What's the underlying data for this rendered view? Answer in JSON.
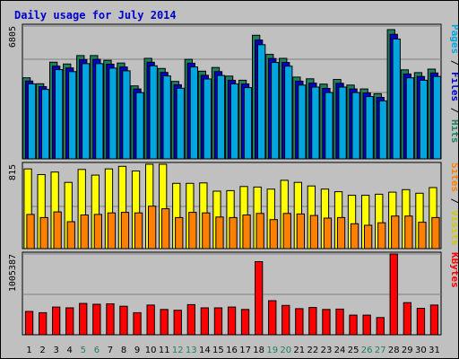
{
  "chart_data": {
    "title": "Daily usage for July 2014",
    "days": [
      "1",
      "2",
      "3",
      "4",
      "5",
      "6",
      "7",
      "8",
      "9",
      "10",
      "11",
      "12",
      "13",
      "14",
      "15",
      "16",
      "17",
      "18",
      "19",
      "20",
      "21",
      "22",
      "23",
      "24",
      "25",
      "26",
      "27",
      "28",
      "29",
      "30",
      "31"
    ],
    "weekend_days": [
      "5",
      "6",
      "12",
      "13",
      "19",
      "20",
      "26",
      "27"
    ],
    "panels": [
      {
        "id": "hits",
        "type": "bar",
        "ymax_label": "6805",
        "ylim": [
          0,
          6805
        ],
        "legend": [
          {
            "text": "Pages",
            "color": "#00a6e0"
          },
          {
            "text": " / ",
            "color": "#000000"
          },
          {
            "text": "Files",
            "color": "#0000cc"
          },
          {
            "text": " / ",
            "color": "#000000"
          },
          {
            "text": "Hits",
            "color": "#208060"
          }
        ],
        "series": [
          {
            "name": "Hits",
            "color": "#208060",
            "values": [
              4150,
              3850,
              4950,
              4860,
              5290,
              5290,
              5050,
              4910,
              3740,
              5150,
              4630,
              3970,
              5100,
              4490,
              4680,
              4240,
              4030,
              6330,
              5350,
              5150,
              4190,
              4100,
              3830,
              4070,
              3780,
              3580,
              3340,
              6620,
              4560,
              4420,
              4600
            ]
          },
          {
            "name": "Files",
            "color": "#0000cc",
            "values": [
              3990,
              3700,
              4750,
              4660,
              5090,
              5100,
              4850,
              4710,
              3580,
              4950,
              4430,
              3800,
              4900,
              4280,
              4470,
              4030,
              3840,
              6090,
              5140,
              4940,
              3980,
              3880,
              3610,
              3870,
              3580,
              3380,
              3150,
              6380,
              4350,
              4220,
              4400
            ]
          },
          {
            "name": "Pages",
            "color": "#00a6e0",
            "values": [
              3840,
              3560,
              4570,
              4470,
              4880,
              4880,
              4650,
              4510,
              3390,
              4770,
              4250,
              3620,
              4710,
              4090,
              4270,
              3840,
              3650,
              5850,
              4940,
              4750,
              3780,
              3680,
              3400,
              3680,
              3400,
              3190,
              2970,
              6140,
              4150,
              4030,
              4220
            ]
          }
        ]
      },
      {
        "id": "visits",
        "type": "bar",
        "ymax_label": "815",
        "ylim": [
          0,
          815
        ],
        "legend": [
          {
            "text": "Sites",
            "color": "#ff8000"
          },
          {
            "text": " / ",
            "color": "#000000"
          },
          {
            "text": "Visits",
            "color": "#cccc00"
          }
        ],
        "series": [
          {
            "name": "Visits",
            "color": "#ffff00",
            "values": [
              770,
              715,
              740,
              640,
              765,
              710,
              770,
              795,
              750,
              815,
              815,
              630,
              630,
              635,
              555,
              560,
              600,
              595,
              575,
              660,
              640,
              605,
              575,
              550,
              515,
              515,
              525,
              545,
              570,
              535,
              590
            ]
          },
          {
            "name": "Sites",
            "color": "#ff8000",
            "values": [
              330,
              300,
              355,
              260,
              325,
              330,
              345,
              350,
              345,
              410,
              385,
              300,
              350,
              345,
              305,
              300,
              325,
              340,
              280,
              340,
              335,
              320,
              295,
              300,
              240,
              225,
              250,
              315,
              315,
              255,
              300
            ]
          }
        ]
      },
      {
        "id": "kbytes",
        "type": "bar",
        "ymax_label": "1005387",
        "ylim": [
          0,
          1005387
        ],
        "legend": [
          {
            "text": "KBytes",
            "color": "#ff0000"
          }
        ],
        "series": [
          {
            "name": "KBytes",
            "color": "#ff0000",
            "values": [
              290000,
              275000,
              345000,
              335000,
              390000,
              380000,
              385000,
              355000,
              275000,
              370000,
              315000,
              305000,
              375000,
              335000,
              335000,
              345000,
              315000,
              910000,
              425000,
              365000,
              325000,
              340000,
              315000,
              320000,
              245000,
              245000,
              215000,
              1005387,
              400000,
              330000,
              370000
            ]
          }
        ]
      }
    ]
  }
}
